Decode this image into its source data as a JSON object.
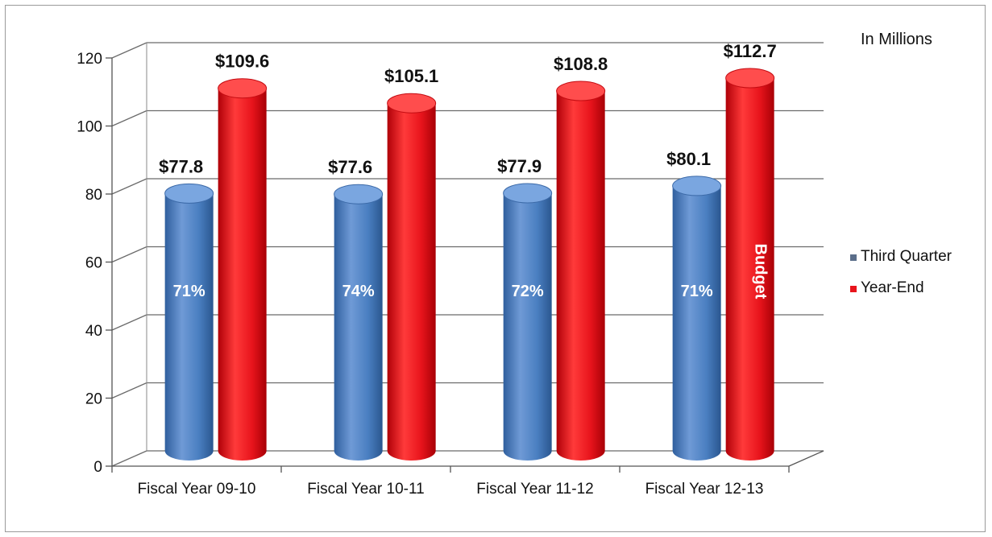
{
  "chart_data": {
    "type": "bar",
    "units_note": "In Millions",
    "categories": [
      "Fiscal Year 09-10",
      "Fiscal Year 10-11",
      "Fiscal Year 11-12",
      "Fiscal Year 12-13"
    ],
    "series": [
      {
        "name": "Third Quarter",
        "color": "#4a7fc1",
        "values": [
          77.8,
          77.6,
          77.9,
          80.1
        ],
        "value_labels": [
          "$77.8",
          "$77.6",
          "$77.9",
          "$80.1"
        ],
        "inner_labels": [
          "71%",
          "74%",
          "72%",
          "71%"
        ]
      },
      {
        "name": "Year-End",
        "color": "#e8141c",
        "values": [
          109.6,
          105.1,
          108.8,
          112.7
        ],
        "value_labels": [
          "$109.6",
          "$105.1",
          "$108.8",
          "$112.7"
        ],
        "inner_labels": [
          "",
          "",
          "",
          "Budget"
        ]
      }
    ],
    "ylim": [
      0,
      120
    ],
    "yticks": [
      0,
      20,
      40,
      60,
      80,
      100,
      120
    ],
    "grid": true,
    "legend_position": "right",
    "style": "3d-cylinder"
  }
}
